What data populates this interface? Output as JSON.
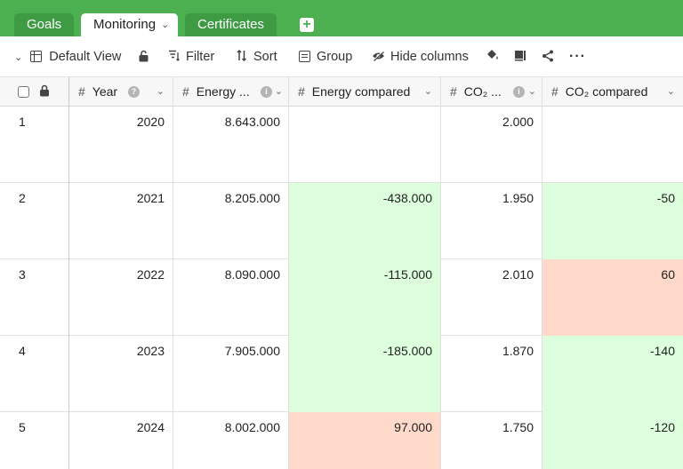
{
  "tabs": [
    {
      "label": "Goals",
      "active": false
    },
    {
      "label": "Monitoring",
      "active": true
    },
    {
      "label": "Certificates",
      "active": false
    }
  ],
  "toolbar": {
    "view_label": "Default View",
    "filter_label": "Filter",
    "sort_label": "Sort",
    "group_label": "Group",
    "hide_columns_label": "Hide columns"
  },
  "columns": [
    {
      "label": "Year"
    },
    {
      "label": "Energy ..."
    },
    {
      "label": "Energy compared"
    },
    {
      "label": "CO₂ ..."
    },
    {
      "label": "CO₂ compared"
    }
  ],
  "rows": [
    {
      "no": "1",
      "year": "2020",
      "energy": "8.643.000",
      "energy_compared": "",
      "co2": "2.000",
      "co2_compared": "",
      "energy_status": "none",
      "co2_status": "none"
    },
    {
      "no": "2",
      "year": "2021",
      "energy": "8.205.000",
      "energy_compared": "-438.000",
      "co2": "1.950",
      "co2_compared": "-50",
      "energy_status": "neg",
      "co2_status": "neg"
    },
    {
      "no": "3",
      "year": "2022",
      "energy": "8.090.000",
      "energy_compared": "-115.000",
      "co2": "2.010",
      "co2_compared": "60",
      "energy_status": "neg",
      "co2_status": "pos"
    },
    {
      "no": "4",
      "year": "2023",
      "energy": "7.905.000",
      "energy_compared": "-185.000",
      "co2": "1.870",
      "co2_compared": "-140",
      "energy_status": "neg",
      "co2_status": "neg"
    },
    {
      "no": "5",
      "year": "2024",
      "energy": "8.002.000",
      "energy_compared": "97.000",
      "co2": "1.750",
      "co2_compared": "-120",
      "energy_status": "pos",
      "co2_status": "neg"
    }
  ],
  "colors": {
    "accent": "#4caf50",
    "decrease_bg": "#dcfedc",
    "increase_bg": "#ffd9c9"
  }
}
